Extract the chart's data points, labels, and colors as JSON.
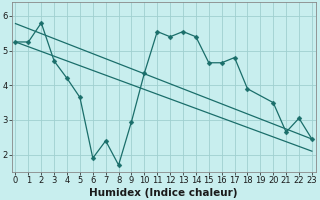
{
  "xlabel": "Humidex (Indice chaleur)",
  "bg_color": "#c8eeee",
  "plot_bg_color": "#c8eeee",
  "line_color": "#1a6e6a",
  "grid_color": "#a0d0d0",
  "spine_color": "#888888",
  "x_ticks": [
    0,
    1,
    2,
    3,
    4,
    5,
    6,
    7,
    8,
    9,
    10,
    11,
    12,
    13,
    14,
    15,
    16,
    17,
    18,
    19,
    20,
    21,
    22,
    23
  ],
  "y_ticks": [
    2,
    3,
    4,
    5,
    6
  ],
  "ylim": [
    1.5,
    6.4
  ],
  "xlim": [
    -0.3,
    23.3
  ],
  "zigzag_x": [
    0,
    1,
    2,
    3,
    4,
    5,
    6,
    7,
    8,
    9,
    10,
    11,
    12,
    13,
    14,
    15,
    16,
    17,
    18,
    20,
    21,
    22,
    23
  ],
  "zigzag_y": [
    5.25,
    5.25,
    5.8,
    4.7,
    4.2,
    3.65,
    1.9,
    2.4,
    1.7,
    2.95,
    4.35,
    5.55,
    5.4,
    5.55,
    5.4,
    4.65,
    4.65,
    4.8,
    3.9,
    3.5,
    2.65,
    3.05,
    2.45
  ],
  "line1_x": [
    0,
    23
  ],
  "line1_y": [
    5.78,
    2.45
  ],
  "line2_x": [
    0,
    23
  ],
  "line2_y": [
    5.25,
    2.1
  ],
  "tick_fontsize": 6,
  "label_fontsize": 7.5,
  "marker_size": 2.5,
  "linewidth": 0.9
}
